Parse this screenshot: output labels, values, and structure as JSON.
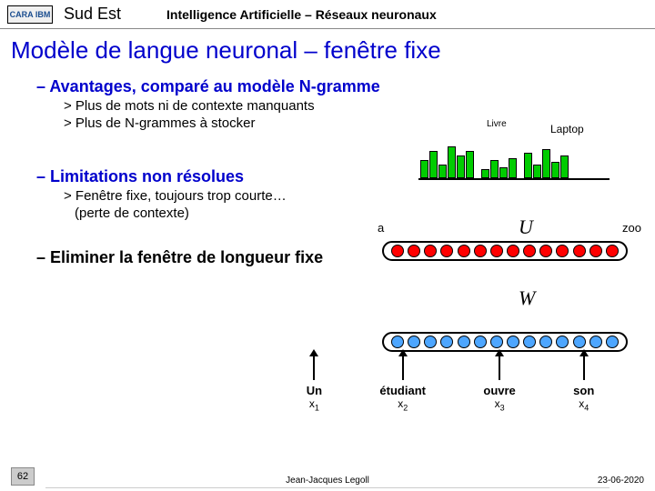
{
  "header": {
    "logo_text": "CARA IBM",
    "region": "Sud Est",
    "subtitle": "Intelligence Artificielle – Réseaux neuronaux"
  },
  "title": "Modèle de langue neuronal – fenêtre fixe",
  "sections": {
    "s1": {
      "heading": "– Avantages, comparé au modèle N-gramme",
      "p1": "> Plus de mots ni de contexte manquants",
      "p2": "> Plus de N-grammes à stocker"
    },
    "s2": {
      "heading": "– Limitations non résolues",
      "p1": "> Fenêtre fixe, toujours trop courte…",
      "p2": "(perte de contexte)"
    },
    "s3": {
      "heading": "– Eliminer la fenêtre de longueur fixe"
    }
  },
  "diagram": {
    "hist_label1": "Livre",
    "hist_label2": "Laptop",
    "label_a": "a",
    "label_zoo": "zoo",
    "u": "U",
    "w": "W",
    "bars": [
      20,
      30,
      15,
      35,
      25,
      30,
      10,
      20,
      12,
      22,
      28,
      15,
      32,
      18,
      25
    ],
    "bar_color": "#00cc00",
    "dot_red": "#ff0000",
    "dot_blue": "#4da6ff",
    "words": [
      {
        "word": "Un",
        "x": "x",
        "sub": "1"
      },
      {
        "word": "étudiant",
        "x": "x",
        "sub": "2"
      },
      {
        "word": "ouvre",
        "x": "x",
        "sub": "3"
      },
      {
        "word": "son",
        "x": "x",
        "sub": "4"
      }
    ]
  },
  "footer": {
    "slide": "62",
    "author": "Jean-Jacques Legoll",
    "date": "23-06-2020"
  }
}
